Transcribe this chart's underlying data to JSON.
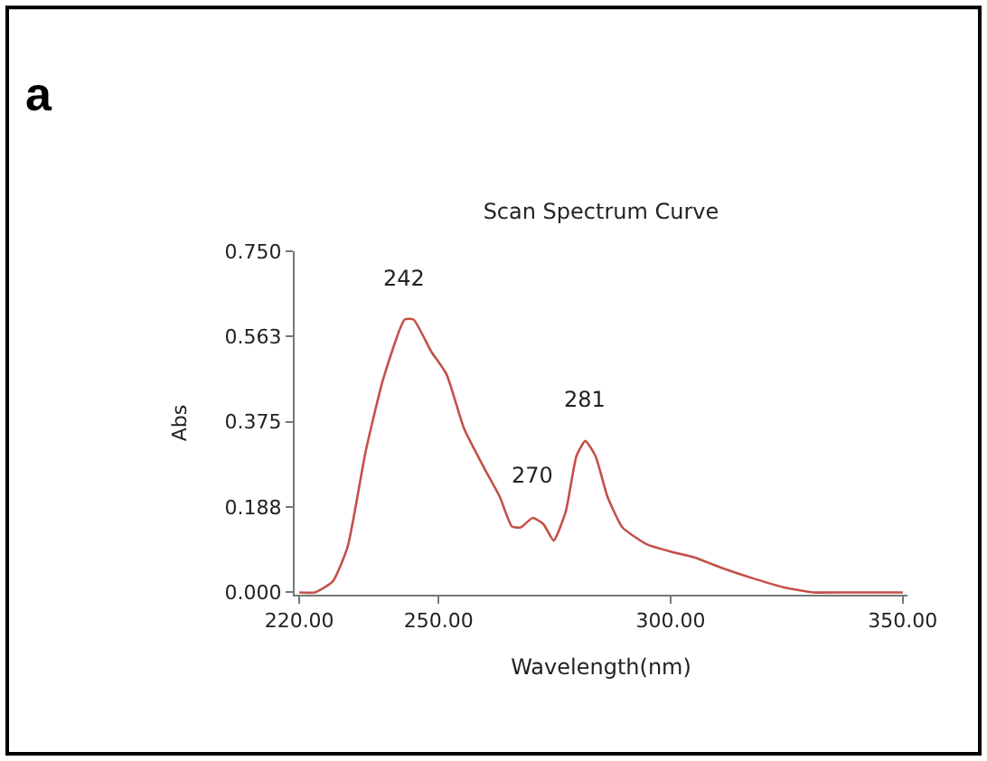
{
  "chart_data": {
    "type": "line",
    "title": "Scan Spectrum Curve",
    "xlabel": "Wavelength(nm)",
    "ylabel": "Abs",
    "x": [
      220,
      223.3,
      227.2,
      230.4,
      234.3,
      238.1,
      242.7,
      244.6,
      248.4,
      251.7,
      255.5,
      260,
      263.2,
      265.8,
      267.7,
      270.3,
      272.6,
      274.8,
      277.4,
      279.7,
      281.6,
      283.8,
      286.4,
      289.6,
      294.8,
      299.9,
      305.1,
      311.5,
      318,
      324.4,
      330.8,
      337.2,
      350
    ],
    "series": [
      {
        "color": "#c4504a",
        "values": [
          0.0,
          0.0,
          0.024,
          0.1,
          0.31,
          0.47,
          0.6,
          0.6,
          0.53,
          0.48,
          0.36,
          0.27,
          0.21,
          0.145,
          0.143,
          0.164,
          0.15,
          0.114,
          0.178,
          0.3,
          0.333,
          0.3,
          0.21,
          0.143,
          0.106,
          0.09,
          0.077,
          0.052,
          0.03,
          0.011,
          0.0,
          0.0,
          0.0
        ]
      }
    ],
    "xlim": [
      219,
      351
    ],
    "ylim": [
      -0.005,
      0.75
    ],
    "xticks": [
      {
        "value": 220,
        "label": "220.00"
      },
      {
        "value": 250,
        "label": "250.00"
      },
      {
        "value": 300,
        "label": "300.00"
      },
      {
        "value": 350,
        "label": "350.00"
      }
    ],
    "yticks": [
      {
        "value": 0,
        "label": "0.000"
      },
      {
        "value": 0.188,
        "label": "0.188"
      },
      {
        "value": 0.375,
        "label": "0.375"
      },
      {
        "value": 0.563,
        "label": "0.563"
      },
      {
        "value": 0.75,
        "label": "0.750"
      }
    ],
    "annotations": [
      "a",
      {
        "text": "242",
        "x": 242.7,
        "y": 0.6
      },
      {
        "text": "270",
        "x": 270.3,
        "y": 0.164
      },
      {
        "text": "281",
        "x": 281.6,
        "y": 0.333
      }
    ],
    "marker": "none",
    "line_style": "solid"
  }
}
